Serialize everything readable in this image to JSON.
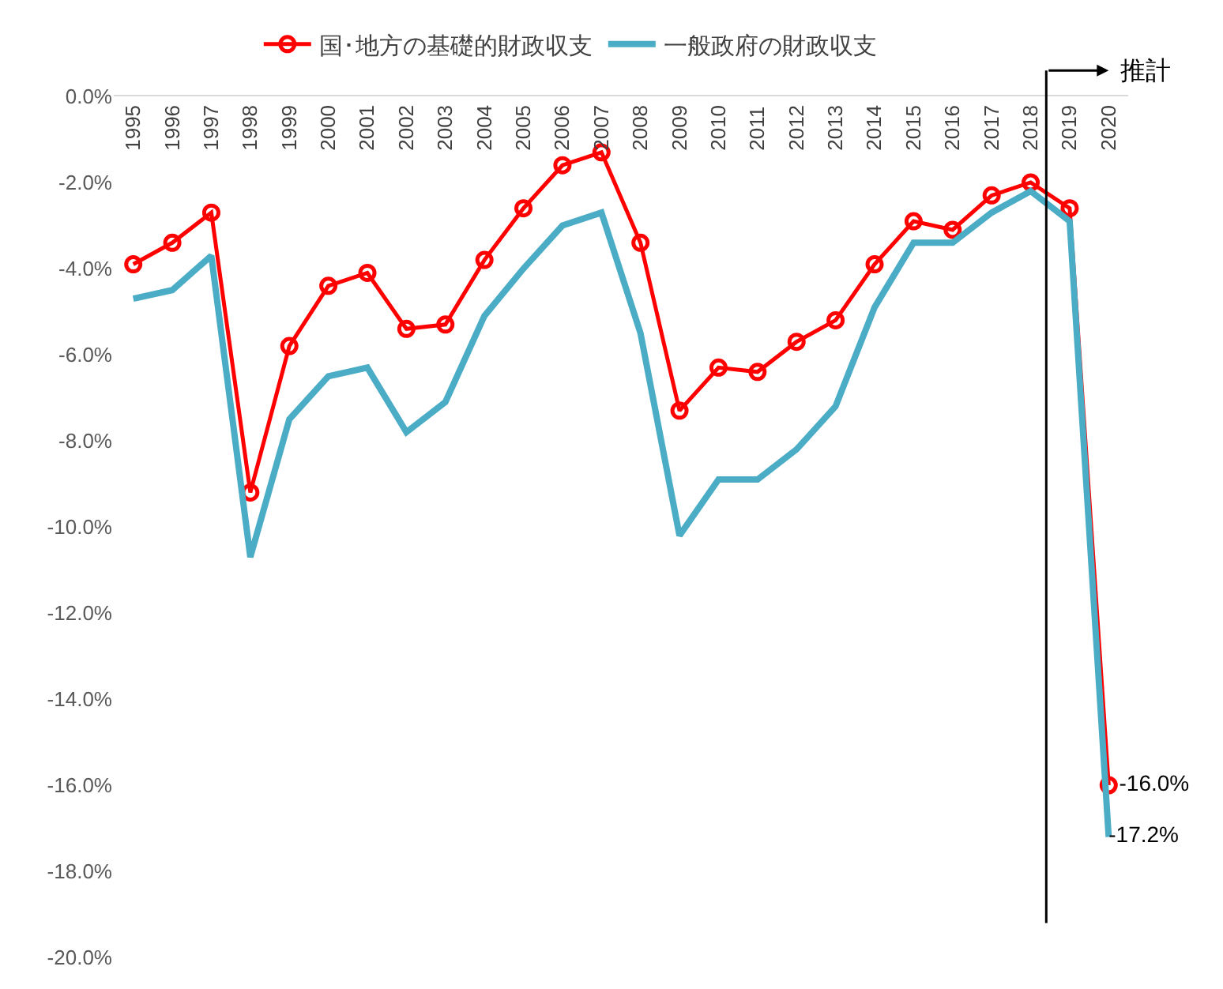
{
  "chart_data": {
    "type": "line",
    "x": [
      1995,
      1996,
      1997,
      1998,
      1999,
      2000,
      2001,
      2002,
      2003,
      2004,
      2005,
      2006,
      2007,
      2008,
      2009,
      2010,
      2011,
      2012,
      2013,
      2014,
      2015,
      2016,
      2017,
      2018,
      2019,
      2020
    ],
    "series": [
      {
        "name": "国･地方の基礎的財政収支",
        "color": "#ff0000",
        "marker": "circle",
        "values": [
          -3.9,
          -3.4,
          -2.7,
          -9.2,
          -5.8,
          -4.4,
          -4.1,
          -5.4,
          -5.3,
          -3.8,
          -2.6,
          -1.6,
          -1.3,
          -3.4,
          -7.3,
          -6.3,
          -6.4,
          -5.7,
          -5.2,
          -3.9,
          -2.9,
          -3.1,
          -2.3,
          -2.0,
          -2.6,
          -16.0
        ],
        "value_labels": [
          null,
          null,
          null,
          null,
          null,
          null,
          null,
          null,
          null,
          null,
          null,
          null,
          null,
          null,
          null,
          null,
          null,
          null,
          null,
          null,
          null,
          null,
          null,
          null,
          null,
          "-16.0%"
        ]
      },
      {
        "name": "一般政府の財政収支",
        "color": "#4bacc6",
        "marker": "none",
        "values": [
          -4.7,
          -4.5,
          -3.7,
          -10.7,
          -7.5,
          -6.5,
          -6.3,
          -7.8,
          -7.1,
          -5.1,
          -4.0,
          -3.0,
          -2.7,
          -5.5,
          -10.2,
          -8.9,
          -8.9,
          -8.2,
          -7.2,
          -4.9,
          -3.4,
          -3.4,
          -2.7,
          -2.2,
          -2.9,
          -17.2
        ],
        "value_labels": [
          null,
          null,
          null,
          null,
          null,
          null,
          null,
          null,
          null,
          null,
          null,
          null,
          null,
          null,
          null,
          null,
          null,
          null,
          null,
          null,
          null,
          null,
          null,
          null,
          null,
          "-17.2%"
        ]
      }
    ],
    "xlim": [
      1994.5,
      2020.5
    ],
    "xticks": [
      1995,
      1996,
      1997,
      1998,
      1999,
      2000,
      2001,
      2002,
      2003,
      2004,
      2005,
      2006,
      2007,
      2008,
      2009,
      2010,
      2011,
      2012,
      2013,
      2014,
      2015,
      2016,
      2017,
      2018,
      2019,
      2020
    ],
    "ylim": [
      -20,
      0
    ],
    "yticks": [
      {
        "value": 0,
        "label": "0.0%"
      },
      {
        "value": -2,
        "label": "-2.0%"
      },
      {
        "value": -4,
        "label": "-4.0%"
      },
      {
        "value": -6,
        "label": "-6.0%"
      },
      {
        "value": -8,
        "label": "-8.0%"
      },
      {
        "value": -10,
        "label": "-10.0%"
      },
      {
        "value": -12,
        "label": "-12.0%"
      },
      {
        "value": -14,
        "label": "-14.0%"
      },
      {
        "value": -16,
        "label": "-16.0%"
      },
      {
        "value": -18,
        "label": "-18.0%"
      },
      {
        "value": -20,
        "label": "-20.0%"
      }
    ],
    "ref_lines": [
      {
        "axis": "x",
        "value": 2018.4,
        "label": "推計",
        "color": "#000000"
      }
    ],
    "legend": "top",
    "grid": false,
    "line_style": "solid"
  }
}
